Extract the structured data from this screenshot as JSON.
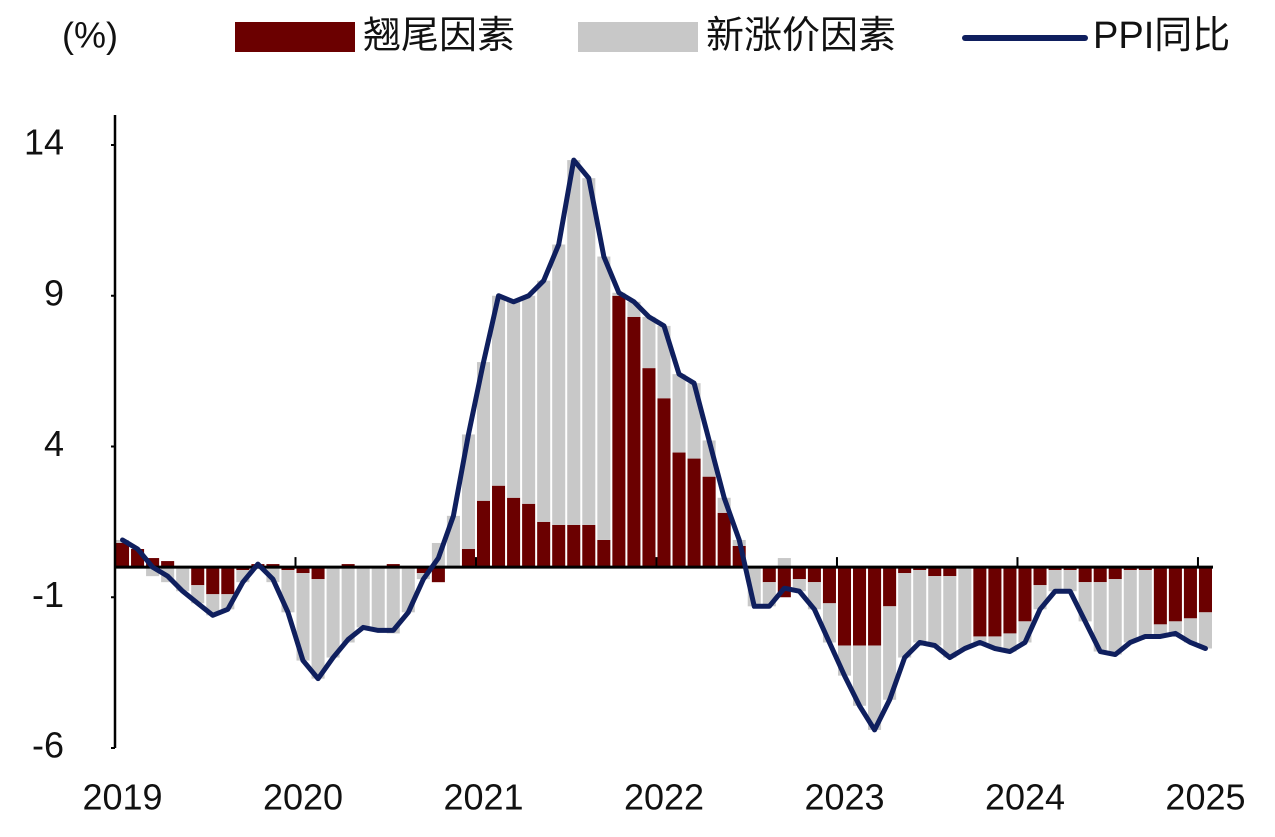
{
  "chart_data": {
    "type": "combo",
    "unit_label": "(%)",
    "categories": [
      "2019",
      null,
      null,
      null,
      null,
      null,
      null,
      null,
      null,
      null,
      null,
      null,
      "2020",
      null,
      null,
      null,
      null,
      null,
      null,
      null,
      null,
      null,
      null,
      null,
      "2021",
      null,
      null,
      null,
      null,
      null,
      null,
      null,
      null,
      null,
      null,
      null,
      "2022",
      null,
      null,
      null,
      null,
      null,
      null,
      null,
      null,
      null,
      null,
      null,
      "2023",
      null,
      null,
      null,
      null,
      null,
      null,
      null,
      null,
      null,
      null,
      null,
      "2024",
      null,
      null,
      null,
      null,
      null,
      null,
      null,
      null,
      null,
      null,
      null,
      "2025"
    ],
    "series": [
      {
        "name": "翘尾因素",
        "type": "bar",
        "color": "#6b0000",
        "values": [
          0.8,
          0.6,
          0.3,
          0.2,
          0.0,
          -0.6,
          -0.9,
          -0.9,
          -0.1,
          0.1,
          0.1,
          -0.1,
          -0.2,
          -0.4,
          0.0,
          0.1,
          0.0,
          0.0,
          0.1,
          0.0,
          -0.2,
          -0.5,
          0.0,
          0.6,
          2.2,
          2.7,
          2.3,
          2.1,
          1.5,
          1.4,
          1.4,
          1.4,
          0.9,
          9.0,
          8.3,
          6.6,
          5.6,
          3.8,
          3.6,
          3.0,
          1.8,
          0.7,
          0.0,
          -0.5,
          -1.0,
          -0.4,
          -0.5,
          -1.2,
          -2.6,
          -2.6,
          -2.6,
          -1.3,
          -0.2,
          -0.1,
          -0.3,
          -0.3,
          0.0,
          -2.3,
          -2.3,
          -2.2,
          -1.8,
          -0.6,
          -0.1,
          -0.1,
          -0.5,
          -0.5,
          -0.4,
          -0.1,
          -0.1,
          -1.9,
          -1.8,
          -1.7,
          -1.5
        ]
      },
      {
        "name": "新涨价因素",
        "type": "bar",
        "color": "#c8c8c8",
        "values": [
          0.1,
          0.0,
          -0.3,
          -0.5,
          -0.8,
          -0.6,
          -0.7,
          -0.5,
          -0.4,
          0.0,
          -0.5,
          -1.4,
          -2.9,
          -3.3,
          -3.0,
          -2.5,
          -2.0,
          -2.1,
          -2.2,
          -1.5,
          -0.2,
          0.8,
          1.7,
          3.8,
          4.6,
          6.3,
          6.5,
          6.9,
          8.0,
          9.3,
          12.1,
          11.5,
          9.4,
          0.1,
          0.5,
          1.7,
          2.4,
          2.6,
          2.5,
          1.2,
          0.5,
          0.2,
          -1.3,
          -0.8,
          0.3,
          -0.4,
          -0.9,
          -1.3,
          -1.0,
          -2.0,
          -2.8,
          -3.1,
          -2.8,
          -2.4,
          -2.3,
          -2.7,
          -2.7,
          -0.2,
          -0.4,
          -0.6,
          -0.7,
          -0.8,
          -0.7,
          -0.7,
          -1.3,
          -2.3,
          -2.5,
          -2.4,
          -2.2,
          -0.4,
          -0.4,
          -0.8,
          -1.2
        ]
      },
      {
        "name": "PPI同比",
        "type": "line",
        "color": "#0f1f5e",
        "values": [
          0.9,
          0.6,
          0.0,
          -0.3,
          -0.8,
          -1.2,
          -1.6,
          -1.4,
          -0.5,
          0.1,
          -0.4,
          -1.5,
          -3.1,
          -3.7,
          -3.0,
          -2.4,
          -2.0,
          -2.1,
          -2.1,
          -1.5,
          -0.4,
          0.3,
          1.7,
          4.4,
          6.8,
          9.0,
          8.8,
          9.0,
          9.5,
          10.7,
          13.5,
          12.9,
          10.3,
          9.1,
          8.8,
          8.3,
          8.0,
          6.4,
          6.1,
          4.2,
          2.3,
          0.9,
          -1.3,
          -1.3,
          -0.7,
          -0.8,
          -1.4,
          -2.5,
          -3.6,
          -4.6,
          -5.4,
          -4.4,
          -3.0,
          -2.5,
          -2.6,
          -3.0,
          -2.7,
          -2.5,
          -2.7,
          -2.8,
          -2.5,
          -1.4,
          -0.8,
          -0.8,
          -1.8,
          -2.8,
          -2.9,
          -2.5,
          -2.3,
          -2.3,
          -2.2,
          -2.5,
          -2.7
        ]
      }
    ],
    "ylim": [
      -6,
      14
    ],
    "yticks": [
      14,
      9,
      4,
      -1,
      -6
    ],
    "stacked": true
  }
}
